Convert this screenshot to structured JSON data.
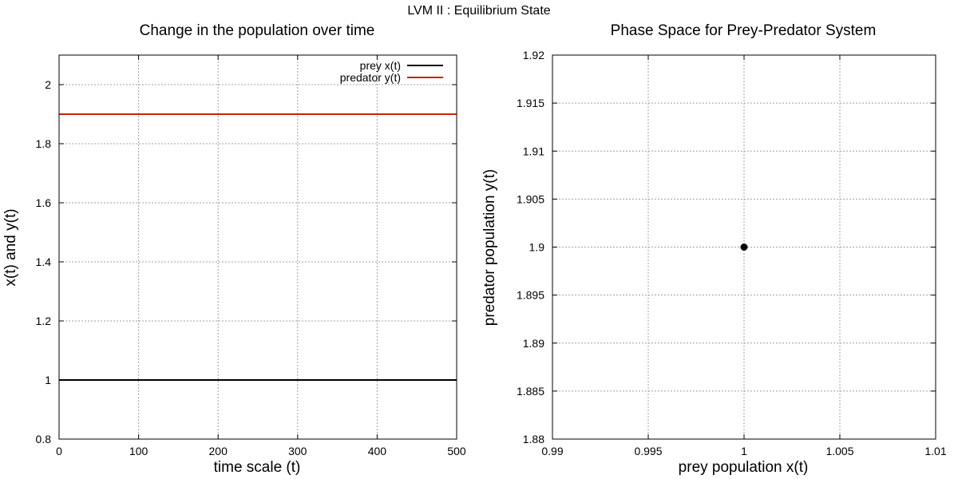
{
  "figure_title": "LVM II : Equilibrium State",
  "colors": {
    "prey": "#000000",
    "predator": "#cc2200",
    "grid": "#a0a0a0",
    "point": "#000000"
  },
  "chart_data": [
    {
      "type": "line",
      "title": "Change in the population over time",
      "xlabel": "time scale (t)",
      "ylabel": "x(t) and y(t)",
      "xlim": [
        0,
        500
      ],
      "ylim": [
        0.8,
        2.1
      ],
      "xticks": [
        0,
        100,
        200,
        300,
        400,
        500
      ],
      "xtick_labels": [
        "0",
        "100",
        "200",
        "300",
        "400",
        "500"
      ],
      "yticks": [
        0.8,
        1.0,
        1.2,
        1.4,
        1.6,
        1.8,
        2.0
      ],
      "ytick_labels": [
        "0.8",
        "1",
        "1.2",
        "1.4",
        "1.6",
        "1.8",
        "2"
      ],
      "grid": true,
      "legend_position": "top-right",
      "series": [
        {
          "name": "prey x(t)",
          "x": [
            0,
            500
          ],
          "y": [
            1.0,
            1.0
          ],
          "color": "#000000"
        },
        {
          "name": "predator y(t)",
          "x": [
            0,
            500
          ],
          "y": [
            1.9,
            1.9
          ],
          "color": "#cc2200"
        }
      ]
    },
    {
      "type": "scatter",
      "title": "Phase Space for Prey-Predator System",
      "xlabel": "prey population x(t)",
      "ylabel": "predator population y(t)",
      "xlim": [
        0.99,
        1.01
      ],
      "ylim": [
        1.88,
        1.92
      ],
      "xticks": [
        0.99,
        0.995,
        1.0,
        1.005,
        1.01
      ],
      "xtick_labels": [
        "0.99",
        "0.995",
        "1",
        "1.005",
        "1.01"
      ],
      "yticks": [
        1.88,
        1.885,
        1.89,
        1.895,
        1.9,
        1.905,
        1.91,
        1.915,
        1.92
      ],
      "ytick_labels": [
        "1.88",
        "1.885",
        "1.89",
        "1.895",
        "1.9",
        "1.905",
        "1.91",
        "1.915",
        "1.92"
      ],
      "grid": true,
      "points": [
        {
          "x": 1.0,
          "y": 1.9
        }
      ]
    }
  ]
}
